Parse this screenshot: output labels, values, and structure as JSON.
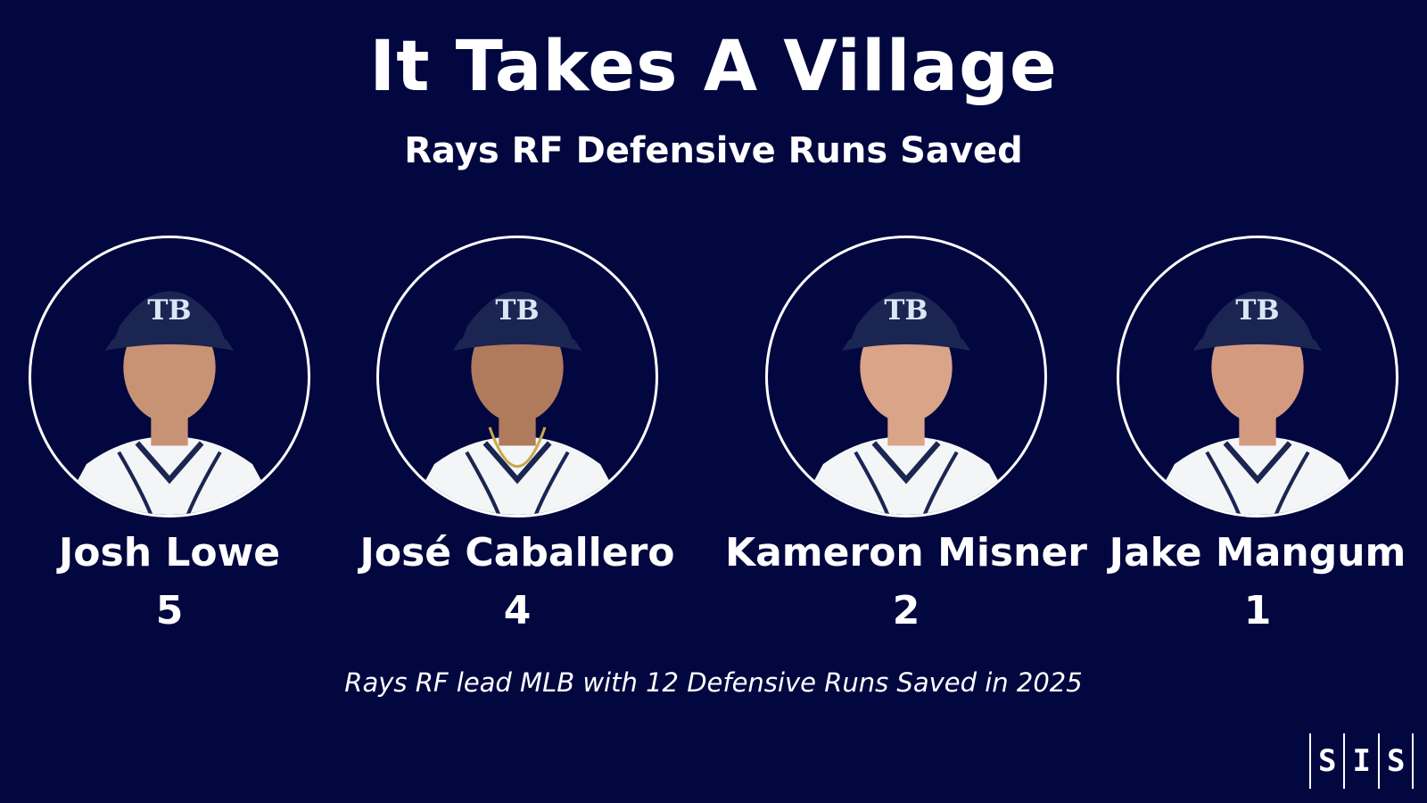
{
  "title": "It Takes A Village",
  "subtitle": "Rays RF Defensive Runs Saved",
  "players": [
    {
      "name": "Josh Lowe",
      "drs": "5",
      "cap_logo": "TB"
    },
    {
      "name": "José Caballero",
      "drs": "4",
      "cap_logo": "TB"
    },
    {
      "name": "Kameron Misner",
      "drs": "2",
      "cap_logo": "TB"
    },
    {
      "name": "Jake Mangum",
      "drs": "1",
      "cap_logo": "TB"
    }
  ],
  "footnote": "Rays RF lead MLB with 12 Defensive Runs Saved in 2025",
  "logo": {
    "letters": [
      "S",
      "I",
      "S"
    ]
  },
  "colors": {
    "background": "#03073f",
    "text": "#ffffff",
    "cap": "#1b2552",
    "cap_logo": "#d9e6f5",
    "jersey": "#f4f5f7",
    "piping": "#1b2552",
    "skin": "#c89375"
  }
}
